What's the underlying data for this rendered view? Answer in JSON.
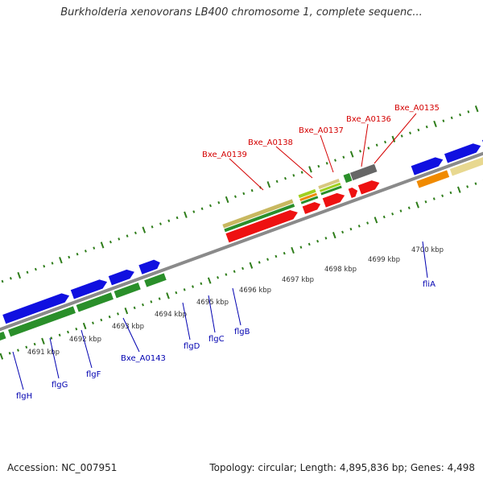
{
  "title": "Burkholderia xenovorans LB400 chromosome 1, complete sequenc...",
  "footer": {
    "accession": "Accession: NC_007951",
    "stats": "Topology: circular; Length: 4,895,836 bp; Genes: 4,498"
  },
  "colors": {
    "backbone": "#8a8a8a",
    "tick": "#2e7d1a",
    "blue": "#1010e0",
    "green": "#2a8f2a",
    "red": "#ee1111",
    "orange": "#f08a00",
    "tan": "#e8d890",
    "gray": "#666666",
    "lime": "#a0d020",
    "label_red": "#d40000",
    "label_blue": "#0000b0"
  },
  "kbp_ticks": [
    "4691 kbp",
    "4692 kbp",
    "4693 kbp",
    "4694 kbp",
    "4695 kbp",
    "4696 kbp",
    "4697 kbp",
    "4698 kbp",
    "4699 kbp",
    "4700 kbp"
  ],
  "gene_labels_top": [
    "Bxe_A0139",
    "Bxe_A0138",
    "Bxe_A0137",
    "Bxe_A0136",
    "Bxe_A0135"
  ],
  "gene_labels_bottom": [
    "flgH",
    "flgG",
    "flgF",
    "Bxe_A0143",
    "flgD",
    "flgC",
    "flgB",
    "fliA"
  ]
}
